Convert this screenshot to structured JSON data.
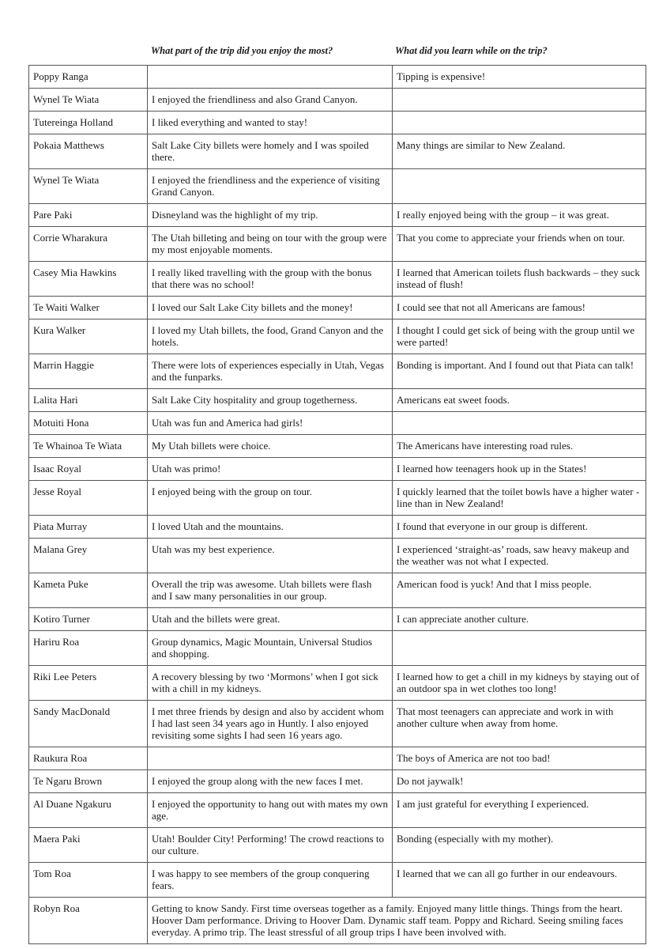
{
  "headers": {
    "name": "",
    "enjoy": "What part of the trip did you enjoy the most?",
    "learn": "What did you learn while on the trip?"
  },
  "rows": [
    {
      "name": "Poppy Ranga",
      "enjoy": "",
      "learn": "Tipping is expensive!"
    },
    {
      "name": "Wynel Te Wiata",
      "enjoy": "I enjoyed the friendliness and also Grand Canyon.",
      "learn": ""
    },
    {
      "name": "Tutereinga Holland",
      "enjoy": "I liked everything and wanted to stay!",
      "learn": ""
    },
    {
      "name": "Pokaia Matthews",
      "enjoy": "Salt Lake City billets were homely and I was spoiled there.",
      "learn": "Many things are similar to New Zealand."
    },
    {
      "name": "Wynel Te Wiata",
      "enjoy": "I enjoyed the friendliness and the experience of visiting Grand Canyon.",
      "learn": ""
    },
    {
      "name": "Pare Paki",
      "enjoy": "Disneyland was the highlight of my trip.",
      "learn": "I really enjoyed being with the group – it was great."
    },
    {
      "name": "Corrie Wharakura",
      "enjoy": "The Utah billeting and being on tour with the group were my most enjoyable moments.",
      "learn": "That you come to appreciate your friends when on tour."
    },
    {
      "name": "Casey Mia Hawkins",
      "enjoy": "I really liked travelling with the group with the bonus that there was no school!",
      "learn": "I learned that American toilets flush backwards – they suck instead of flush!"
    },
    {
      "name": "Te Waiti Walker",
      "enjoy": "I loved our Salt Lake City billets and the money!",
      "learn": "I could see that not all Americans are famous!"
    },
    {
      "name": "Kura Walker",
      "enjoy": "I loved my Utah billets, the food, Grand Canyon and the hotels.",
      "learn": "I thought I could get sick of being with the group until we were parted!"
    },
    {
      "name": "Marrin Haggie",
      "enjoy": "There were lots of experiences especially in Utah, Vegas and the funparks.",
      "learn": "Bonding is important. And I found out that Piata can talk!"
    },
    {
      "name": "Lalita Hari",
      "enjoy": "Salt Lake City hospitality and group togetherness.",
      "learn": "Americans eat sweet foods."
    },
    {
      "name": "Motuiti Hona",
      "enjoy": "Utah was fun and America had girls!",
      "learn": ""
    },
    {
      "name": "Te Whainoa Te Wiata",
      "enjoy": "My Utah billets were choice.",
      "learn": "The Americans have interesting road rules."
    },
    {
      "name": "Isaac Royal",
      "enjoy": "Utah was primo!",
      "learn": "I learned how teenagers hook up in the States!"
    },
    {
      "name": "Jesse Royal",
      "enjoy": "I enjoyed being with the group on tour.",
      "learn": "I quickly learned that the toilet bowls have a higher water -line than in New Zealand!"
    },
    {
      "name": "Piata Murray",
      "enjoy": "I loved Utah and the mountains.",
      "learn": "I found that everyone in our group is different."
    },
    {
      "name": "Malana Grey",
      "enjoy": "Utah was my best experience.",
      "learn": "I experienced ‘straight-as’ roads, saw heavy makeup and the weather was not what I expected."
    },
    {
      "name": "Kameta Puke",
      "enjoy": "Overall the trip was awesome. Utah billets were flash and I saw many personalities in our group.",
      "learn": "American food is yuck! And that I miss people."
    },
    {
      "name": "Kotiro Turner",
      "enjoy": "Utah and the billets were great.",
      "learn": "I can appreciate another culture."
    },
    {
      "name": "Hariru Roa",
      "enjoy": "Group dynamics, Magic Mountain, Universal Studios and shopping.",
      "learn": ""
    },
    {
      "name": "Riki Lee Peters",
      "enjoy": "A recovery blessing by two ‘Mormons’ when I got sick with a chill in my kidneys.",
      "learn": "I learned how to get a chill in my kidneys by staying out of an outdoor spa in wet clothes too long!"
    },
    {
      "name": "Sandy MacDonald",
      "enjoy": "I met three friends by design and also by accident whom I had last seen 34 years ago in Huntly. I also enjoyed revisiting some sights I had seen 16 years ago.",
      "learn": "That most teenagers can appreciate and work in with another culture when away from home."
    },
    {
      "name": "Raukura Roa",
      "enjoy": "",
      "learn": "The boys of America are not too bad!"
    },
    {
      "name": "Te Ngaru Brown",
      "enjoy": "I enjoyed the group along with the new faces I met.",
      "learn": "Do not jaywalk!"
    },
    {
      "name": "Al Duane Ngakuru",
      "enjoy": "I enjoyed the opportunity to hang out with mates my own age.",
      "learn": "I am just grateful for everything I experienced."
    },
    {
      "name": "Maera Paki",
      "enjoy": "Utah! Boulder City! Performing! The crowd reactions to our culture.",
      "learn": "Bonding (especially with my mother)."
    },
    {
      "name": "Tom Roa",
      "enjoy": "I was happy to see members of the group conquering fears.",
      "learn": "I learned that we can all go further in our endeavours."
    }
  ],
  "last_row": {
    "name": "Robyn Roa",
    "combined": "Getting to know Sandy. First time overseas together as a family. Enjoyed many little things. Things from the heart. Hoover Dam performance. Driving to Hoover Dam. Dynamic staff team. Poppy and Richard. Seeing smiling faces everyday. A primo trip. The least stressful of all group trips I have been involved with."
  }
}
